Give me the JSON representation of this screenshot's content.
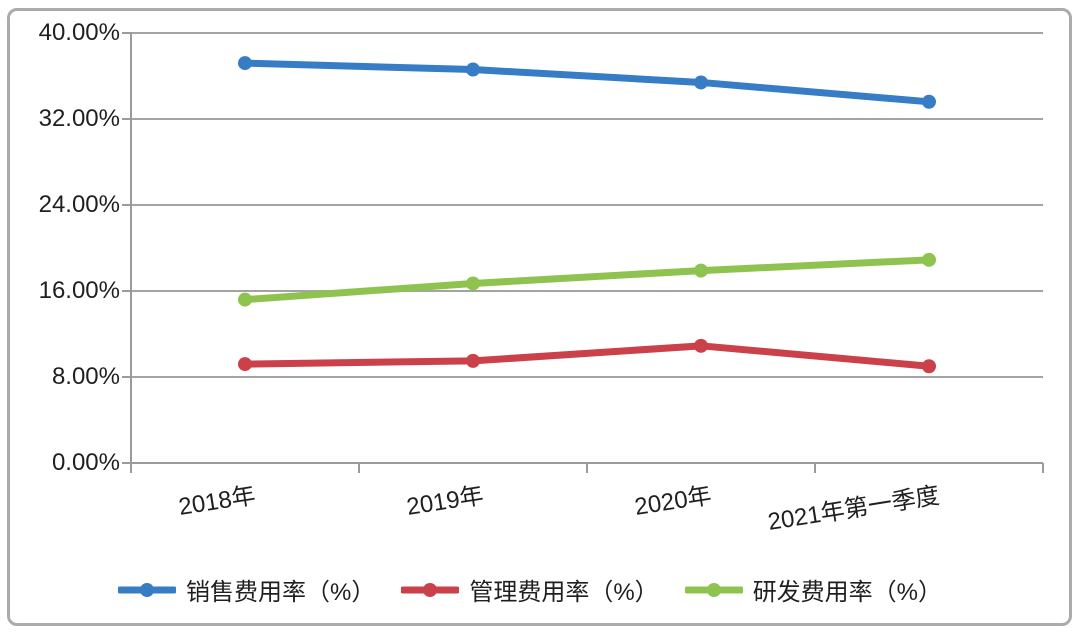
{
  "chart_data": {
    "type": "line",
    "categories": [
      "2018年",
      "2019年",
      "2020年",
      "2021年第一季度"
    ],
    "series": [
      {
        "name": "销售费用率（%）",
        "color": "#377dc5",
        "values": [
          37.2,
          36.6,
          35.4,
          33.6
        ]
      },
      {
        "name": "管理费用率（%）",
        "color": "#ca4149",
        "values": [
          9.2,
          9.5,
          10.9,
          9.0
        ]
      },
      {
        "name": "研发费用率（%）",
        "color": "#8fc34f",
        "values": [
          15.2,
          16.7,
          17.9,
          18.9
        ]
      }
    ],
    "title": "",
    "xlabel": "",
    "ylabel": "",
    "ylim": [
      0,
      40
    ],
    "ytick_step": 8,
    "ytick_labels": [
      "0.00%",
      "8.00%",
      "16.00%",
      "24.00%",
      "32.00%",
      "40.00%"
    ],
    "grid": true,
    "legend_position": "bottom",
    "colors": {
      "gridline": "#a3a3a3",
      "axis": "#9a9a9a",
      "card_border": "#ababab",
      "text": "#1f1f1f",
      "background": "#ffffff"
    }
  }
}
